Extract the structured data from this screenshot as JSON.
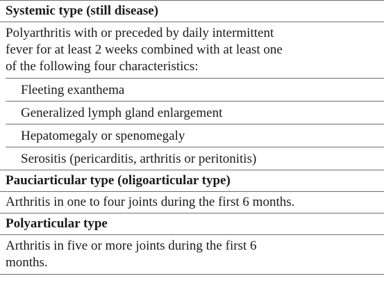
{
  "sections": [
    {
      "heading": "Systemic type (still disease)",
      "description_lines": [
        "Polyarthritis with or preceded by daily intermittent",
        "fever for at least 2 weeks combined with at least one",
        "of the following four characteristics:"
      ],
      "items": [
        "Fleeting exanthema",
        "Generalized lymph gland enlargement",
        "Hepatomegaly or spenomegaly",
        "Serositis (pericarditis, arthritis or peritonitis)"
      ]
    },
    {
      "heading": "Pauciarticular type (oligoarticular type)",
      "description": "Arthritis in one to four joints during the first 6 months."
    },
    {
      "heading": "Polyarticular type",
      "description_lines": [
        "Arthritis in five or more joints during the first 6",
        "months."
      ]
    }
  ]
}
